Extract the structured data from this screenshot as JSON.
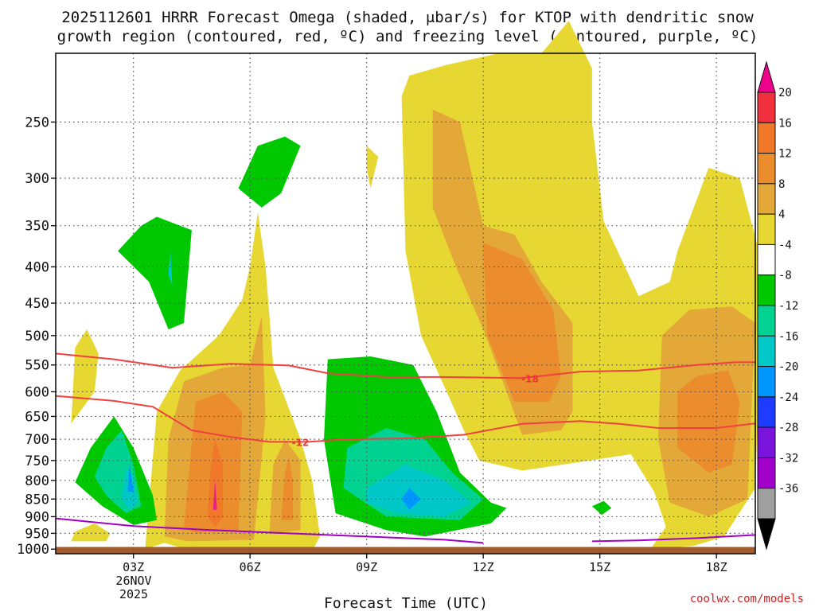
{
  "chart_data": {
    "type": "contour",
    "title_line1": "2025112601 HRRR Forecast Omega (shaded, μbar/s) for KTOP with dendritic snow",
    "title_line2": "growth region (contoured, red, ºC) and freezing level (contoured, purple, ºC)",
    "xlabel": "Forecast Time (UTC)",
    "ylabel": "",
    "credit": "coolwx.com/models",
    "x_ticks": [
      {
        "label": "03Z",
        "hour": 3
      },
      {
        "label": "06Z",
        "hour": 6
      },
      {
        "label": "09Z",
        "hour": 9
      },
      {
        "label": "12Z",
        "hour": 12
      },
      {
        "label": "15Z",
        "hour": 15
      },
      {
        "label": "18Z",
        "hour": 18
      }
    ],
    "x_date_line1": "26NOV",
    "x_date_line2": "2025",
    "xlim_hours": [
      1,
      19
    ],
    "y_ticks": [
      250,
      300,
      350,
      400,
      450,
      500,
      550,
      600,
      650,
      700,
      750,
      800,
      850,
      900,
      950,
      1000
    ],
    "ylim_hpa": [
      1015,
      200
    ],
    "colorbar": {
      "labels": [
        20,
        16,
        12,
        8,
        4,
        -4,
        -8,
        -12,
        -16,
        -20,
        -24,
        -28,
        -32,
        -36
      ],
      "colors": [
        "#ec008c",
        "#f0303c",
        "#f07828",
        "#eb8c2d",
        "#e3a838",
        "#e6d732",
        "#ffffff",
        "#00c800",
        "#00d292",
        "#00c8c8",
        "#0096ff",
        "#1e3cff",
        "#7814dc",
        "#a000c8",
        "#9f9f9f",
        "#000000"
      ]
    },
    "contours": [
      {
        "name": "dgz -18C",
        "label": "-18",
        "color": "#f04040",
        "points": [
          [
            1.0,
            530
          ],
          [
            2.5,
            540
          ],
          [
            4.0,
            555
          ],
          [
            5.5,
            548
          ],
          [
            7.0,
            551
          ],
          [
            8.0,
            565
          ],
          [
            9.5,
            572
          ],
          [
            11.0,
            572
          ],
          [
            13.0,
            574
          ],
          [
            14.5,
            562
          ],
          [
            16.0,
            560
          ],
          [
            17.5,
            550
          ],
          [
            18.5,
            545
          ],
          [
            19.0,
            545
          ]
        ]
      },
      {
        "name": "dgz -12C",
        "label": "-12",
        "color": "#f04040",
        "points": [
          [
            1.0,
            608
          ],
          [
            2.5,
            618
          ],
          [
            3.5,
            630
          ],
          [
            4.5,
            680
          ],
          [
            5.5,
            695
          ],
          [
            6.5,
            706
          ],
          [
            7.5,
            706
          ],
          [
            8.5,
            700
          ],
          [
            10.0,
            698
          ],
          [
            11.5,
            690
          ],
          [
            13.0,
            666
          ],
          [
            14.5,
            660
          ],
          [
            15.5,
            666
          ],
          [
            16.5,
            675
          ],
          [
            18.0,
            675
          ],
          [
            19.0,
            665
          ]
        ]
      },
      {
        "name": "freezing level 0C",
        "label": "",
        "color": "#a000c8",
        "points": [
          [
            1.0,
            905
          ],
          [
            3.0,
            928
          ],
          [
            5.0,
            940
          ],
          [
            7.0,
            950
          ],
          [
            9.0,
            960
          ],
          [
            11.0,
            970
          ],
          [
            12.0,
            980
          ]
        ]
      },
      {
        "name": "freezing level 0C (right)",
        "label": "",
        "color": "#a000c8",
        "points": [
          [
            14.8,
            975
          ],
          [
            16.0,
            972
          ],
          [
            17.5,
            965
          ],
          [
            19.0,
            955
          ]
        ]
      }
    ],
    "omega_regions": [
      {
        "name": "yellow-main-left",
        "value": 4,
        "points": [
          [
            3.3,
            1000
          ],
          [
            3.6,
            640
          ],
          [
            4.2,
            560
          ],
          [
            5.2,
            500
          ],
          [
            5.8,
            445
          ],
          [
            6.0,
            400
          ],
          [
            6.2,
            335
          ],
          [
            6.4,
            400
          ],
          [
            6.6,
            555
          ],
          [
            7.3,
            700
          ],
          [
            7.6,
            800
          ],
          [
            7.8,
            960
          ],
          [
            7.6,
            1005
          ],
          [
            4.5,
            1005
          ],
          [
            3.8,
            980
          ]
        ]
      },
      {
        "name": "orange-left",
        "value": 8,
        "points": [
          [
            3.8,
            960
          ],
          [
            3.9,
            700
          ],
          [
            4.3,
            580
          ],
          [
            5.3,
            555
          ],
          [
            6.0,
            550
          ],
          [
            6.3,
            470
          ],
          [
            6.4,
            650
          ],
          [
            6.1,
            970
          ],
          [
            4.4,
            975
          ]
        ]
      },
      {
        "name": "dark-orange-left",
        "value": 12,
        "points": [
          [
            4.3,
            930
          ],
          [
            4.6,
            620
          ],
          [
            5.3,
            600
          ],
          [
            5.8,
            640
          ],
          [
            5.7,
            940
          ],
          [
            4.6,
            950
          ]
        ]
      },
      {
        "name": "red-left",
        "value": 16,
        "points": [
          [
            4.9,
            900
          ],
          [
            5.0,
            760
          ],
          [
            5.1,
            700
          ],
          [
            5.3,
            760
          ],
          [
            5.3,
            900
          ],
          [
            5.1,
            930
          ]
        ]
      },
      {
        "name": "pink-left",
        "value": 20,
        "points": [
          [
            5.05,
            880
          ],
          [
            5.1,
            800
          ],
          [
            5.15,
            880
          ]
        ]
      },
      {
        "name": "orange-second",
        "value": 8,
        "points": [
          [
            6.5,
            950
          ],
          [
            6.6,
            760
          ],
          [
            6.9,
            700
          ],
          [
            7.3,
            750
          ],
          [
            7.3,
            940
          ]
        ]
      },
      {
        "name": "dark-orange-second",
        "value": 12,
        "points": [
          [
            6.8,
            910
          ],
          [
            6.9,
            780
          ],
          [
            7.0,
            740
          ],
          [
            7.1,
            800
          ],
          [
            7.1,
            910
          ]
        ]
      },
      {
        "name": "yellow-small-left",
        "value": 4,
        "points": [
          [
            1.4,
            665
          ],
          [
            1.5,
            520
          ],
          [
            1.8,
            490
          ],
          [
            2.1,
            530
          ],
          [
            2.0,
            600
          ]
        ]
      },
      {
        "name": "yellow-bottom-left",
        "value": 4,
        "points": [
          [
            1.4,
            975
          ],
          [
            1.5,
            945
          ],
          [
            2.0,
            920
          ],
          [
            2.4,
            950
          ],
          [
            2.3,
            975
          ]
        ]
      },
      {
        "name": "green-left",
        "value": -4,
        "points": [
          [
            1.5,
            805
          ],
          [
            1.9,
            720
          ],
          [
            2.5,
            650
          ],
          [
            3.0,
            720
          ],
          [
            3.5,
            840
          ],
          [
            3.6,
            910
          ],
          [
            3.0,
            925
          ],
          [
            2.2,
            870
          ]
        ]
      },
      {
        "name": "teal-left",
        "value": -8,
        "points": [
          [
            2.0,
            790
          ],
          [
            2.3,
            720
          ],
          [
            2.7,
            680
          ],
          [
            3.0,
            760
          ],
          [
            3.2,
            870
          ],
          [
            2.8,
            890
          ],
          [
            2.3,
            840
          ]
        ]
      },
      {
        "name": "cyan-left",
        "value": -12,
        "points": [
          [
            2.7,
            850
          ],
          [
            2.8,
            770
          ],
          [
            3.0,
            790
          ],
          [
            3.1,
            860
          ],
          [
            2.9,
            880
          ]
        ]
      },
      {
        "name": "blue-left",
        "value": -16,
        "points": [
          [
            2.85,
            830
          ],
          [
            2.9,
            760
          ],
          [
            3.0,
            830
          ]
        ]
      },
      {
        "name": "green-upper-left",
        "value": -4,
        "points": [
          [
            2.6,
            380
          ],
          [
            3.2,
            350
          ],
          [
            3.6,
            340
          ],
          [
            4.5,
            355
          ],
          [
            4.3,
            480
          ],
          [
            3.9,
            490
          ],
          [
            3.4,
            420
          ]
        ]
      },
      {
        "name": "cyan-upper-left",
        "value": -12,
        "points": [
          [
            3.9,
            410
          ],
          [
            3.95,
            380
          ],
          [
            4.0,
            425
          ]
        ]
      },
      {
        "name": "green-top",
        "value": -4,
        "points": [
          [
            5.7,
            310
          ],
          [
            6.2,
            270
          ],
          [
            6.9,
            262
          ],
          [
            7.3,
            270
          ],
          [
            6.8,
            315
          ],
          [
            6.3,
            330
          ]
        ]
      },
      {
        "name": "yellow-dot",
        "value": 4,
        "points": [
          [
            9.0,
            290
          ],
          [
            9.0,
            270
          ],
          [
            9.3,
            280
          ],
          [
            9.1,
            310
          ]
        ]
      },
      {
        "name": "green-middle",
        "value": -4,
        "points": [
          [
            8.0,
            540
          ],
          [
            9.1,
            535
          ],
          [
            10.2,
            550
          ],
          [
            10.8,
            640
          ],
          [
            11.4,
            780
          ],
          [
            12.2,
            860
          ],
          [
            12.6,
            875
          ],
          [
            12.2,
            920
          ],
          [
            10.5,
            960
          ],
          [
            9.5,
            940
          ],
          [
            8.2,
            890
          ],
          [
            7.9,
            700
          ]
        ]
      },
      {
        "name": "teal-middle",
        "value": -8,
        "points": [
          [
            8.5,
            720
          ],
          [
            9.5,
            675
          ],
          [
            10.5,
            700
          ],
          [
            11.2,
            780
          ],
          [
            12.0,
            850
          ],
          [
            11.4,
            910
          ],
          [
            9.5,
            900
          ],
          [
            8.4,
            820
          ]
        ]
      },
      {
        "name": "cyan-middle",
        "value": -12,
        "points": [
          [
            9.0,
            820
          ],
          [
            10.0,
            760
          ],
          [
            11.0,
            800
          ],
          [
            11.7,
            860
          ],
          [
            11.0,
            900
          ],
          [
            9.8,
            890
          ],
          [
            9.0,
            860
          ]
        ]
      },
      {
        "name": "blue-middle",
        "value": -16,
        "points": [
          [
            9.9,
            850
          ],
          [
            10.1,
            820
          ],
          [
            10.4,
            850
          ],
          [
            10.1,
            880
          ]
        ]
      },
      {
        "name": "yellow-main-right",
        "value": 4,
        "points": [
          [
            10.1,
            215
          ],
          [
            11.0,
            208
          ],
          [
            12.4,
            200
          ],
          [
            13.5,
            200
          ],
          [
            14.2,
            180
          ],
          [
            14.8,
            210
          ],
          [
            14.8,
            250
          ],
          [
            15.1,
            345
          ],
          [
            16.0,
            440
          ],
          [
            16.8,
            420
          ],
          [
            17.0,
            380
          ],
          [
            17.8,
            290
          ],
          [
            18.6,
            300
          ],
          [
            19.2,
            400
          ],
          [
            19.0,
            820
          ],
          [
            18.2,
            960
          ],
          [
            17.4,
            990
          ],
          [
            16.3,
            1000
          ],
          [
            16.7,
            930
          ],
          [
            16.4,
            830
          ],
          [
            15.8,
            735
          ],
          [
            14.4,
            755
          ],
          [
            13.0,
            775
          ],
          [
            11.9,
            750
          ],
          [
            11.5,
            680
          ],
          [
            11.0,
            590
          ],
          [
            10.4,
            500
          ],
          [
            10.0,
            380
          ],
          [
            9.9,
            230
          ]
        ]
      },
      {
        "name": "orange-right",
        "value": 8,
        "points": [
          [
            10.7,
            240
          ],
          [
            11.4,
            250
          ],
          [
            12.0,
            350
          ],
          [
            12.8,
            360
          ],
          [
            13.5,
            420
          ],
          [
            14.3,
            480
          ],
          [
            14.3,
            640
          ],
          [
            14.0,
            680
          ],
          [
            13.0,
            690
          ],
          [
            12.6,
            600
          ],
          [
            12.0,
            490
          ],
          [
            11.3,
            400
          ],
          [
            10.7,
            330
          ]
        ]
      },
      {
        "name": "dark-orange-right",
        "value": 12,
        "points": [
          [
            12.0,
            370
          ],
          [
            13.0,
            390
          ],
          [
            13.8,
            460
          ],
          [
            14.0,
            570
          ],
          [
            13.7,
            620
          ],
          [
            12.8,
            620
          ],
          [
            12.1,
            500
          ]
        ]
      },
      {
        "name": "orange-far-right",
        "value": 8,
        "points": [
          [
            16.6,
            500
          ],
          [
            17.3,
            460
          ],
          [
            18.4,
            455
          ],
          [
            19.0,
            480
          ],
          [
            18.8,
            850
          ],
          [
            17.8,
            900
          ],
          [
            16.8,
            860
          ],
          [
            16.5,
            700
          ]
        ]
      },
      {
        "name": "dark-orange-far-right",
        "value": 12,
        "points": [
          [
            17.0,
            600
          ],
          [
            17.5,
            570
          ],
          [
            18.3,
            560
          ],
          [
            18.6,
            620
          ],
          [
            18.4,
            760
          ],
          [
            17.8,
            780
          ],
          [
            17.0,
            720
          ]
        ]
      },
      {
        "name": "green-small-right",
        "value": -4,
        "points": [
          [
            14.8,
            870
          ],
          [
            15.1,
            855
          ],
          [
            15.3,
            875
          ],
          [
            15.05,
            895
          ]
        ]
      }
    ],
    "ground": {
      "top_hpa": 993
    }
  }
}
